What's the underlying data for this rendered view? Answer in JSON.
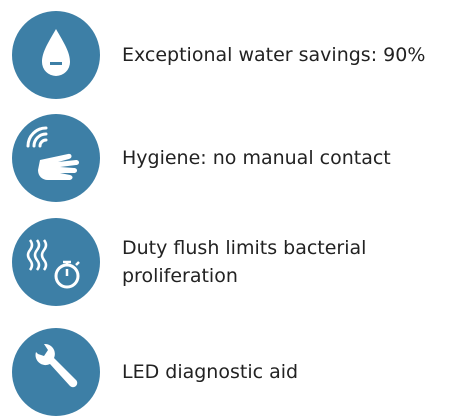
{
  "features": [
    {
      "text": "Exceptional water savings: 90%"
    },
    {
      "text": "Hygiene: no manual contact"
    },
    {
      "text": "Duty flush limits bacterial proliferation"
    },
    {
      "text": "LED diagnostic aid"
    }
  ]
}
